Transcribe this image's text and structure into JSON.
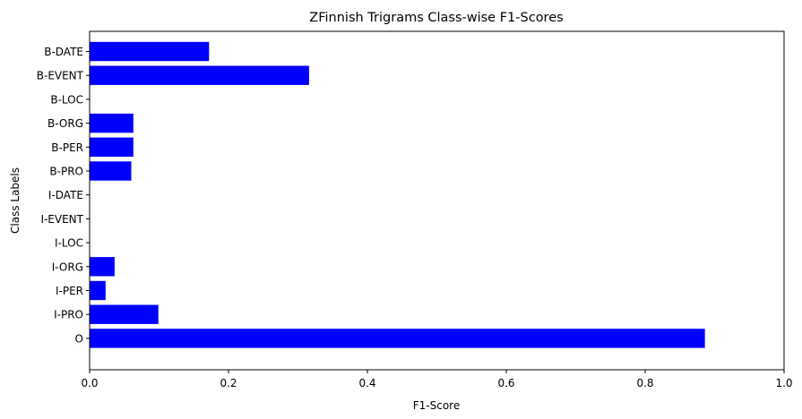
{
  "chart_data": {
    "type": "bar",
    "orientation": "horizontal",
    "title": "ZFinnish Trigrams Class-wise F1-Scores",
    "xlabel": "F1-Score",
    "ylabel": "Class Labels",
    "xlim": [
      0,
      1.0
    ],
    "xticks": [
      "0.0",
      "0.2",
      "0.4",
      "0.6",
      "0.8",
      "1.0"
    ],
    "grid": false,
    "bar_color": "#0000ff",
    "categories": [
      "B-DATE",
      "B-EVENT",
      "B-LOC",
      "B-ORG",
      "B-PER",
      "B-PRO",
      "I-DATE",
      "I-EVENT",
      "I-LOC",
      "I-ORG",
      "I-PER",
      "I-PRO",
      "O"
    ],
    "values": [
      0.172,
      0.316,
      0.0,
      0.063,
      0.063,
      0.06,
      0.0,
      0.0,
      0.0,
      0.036,
      0.023,
      0.099,
      0.886
    ]
  }
}
